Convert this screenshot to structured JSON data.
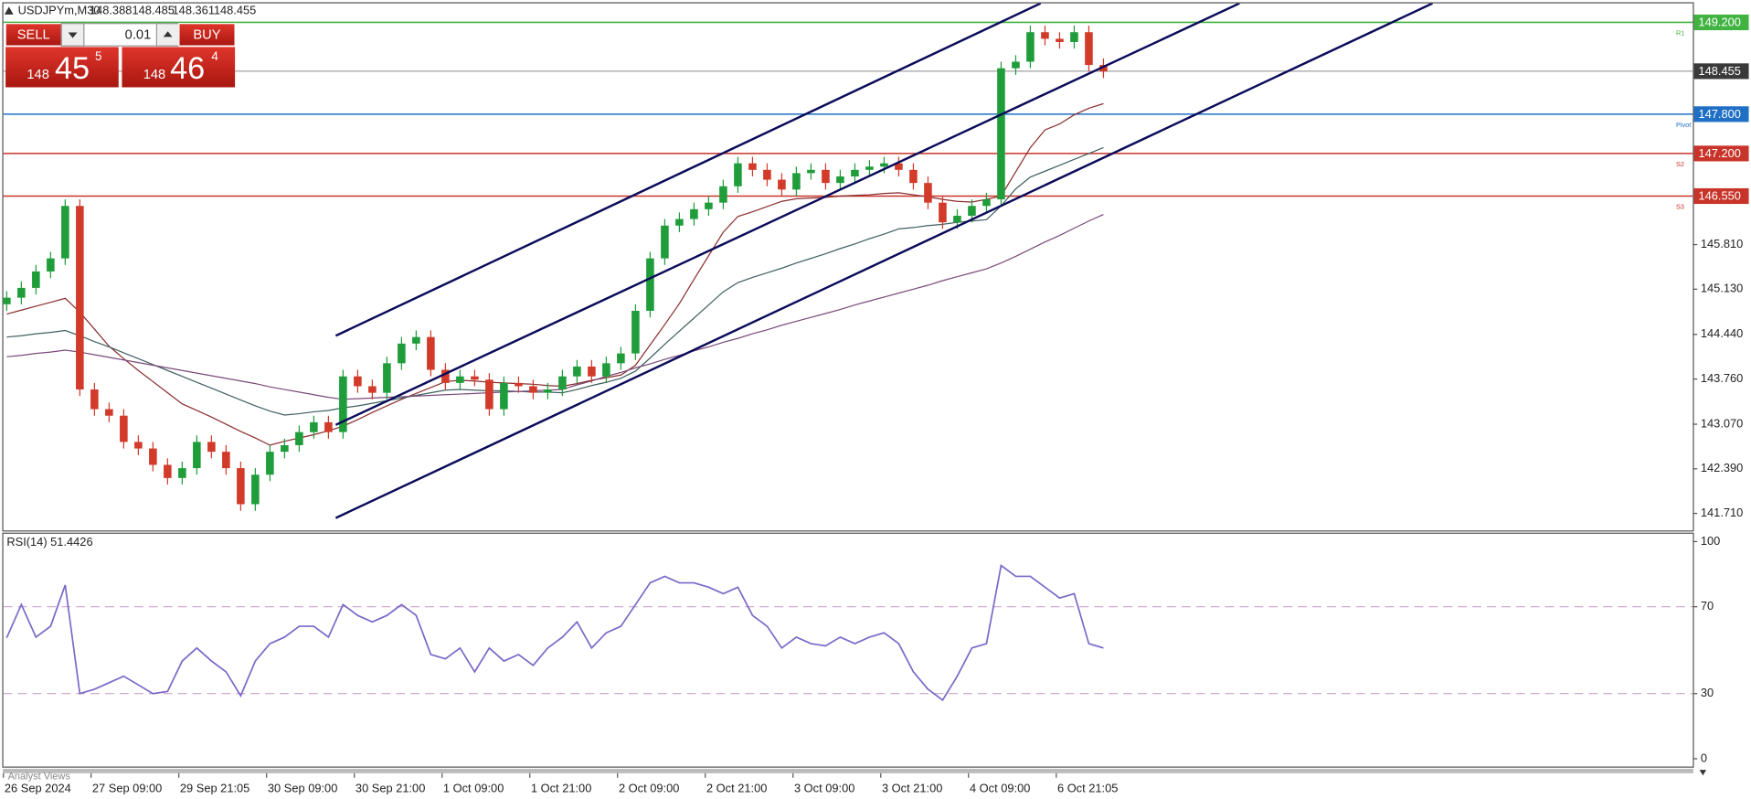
{
  "chart_data": [
    {
      "type": "candlestick",
      "title": "USDJPYm,M30",
      "header_values": [
        148.388,
        148.485,
        148.361,
        148.455
      ],
      "categories": [
        "26 Sep 2024",
        null,
        null,
        null,
        null,
        null,
        "27 Sep 09:00",
        null,
        null,
        null,
        null,
        null,
        "29 Sep 21:05",
        null,
        null,
        null,
        null,
        null,
        "30 Sep 09:00",
        null,
        null,
        null,
        null,
        null,
        "30 Sep 21:00",
        null,
        null,
        null,
        null,
        null,
        "1 Oct 09:00",
        null,
        null,
        null,
        null,
        null,
        "1 Oct 21:00",
        null,
        null,
        null,
        null,
        null,
        "2 Oct 09:00",
        null,
        null,
        null,
        null,
        null,
        "2 Oct 21:00",
        null,
        null,
        null,
        null,
        null,
        "3 Oct 09:00",
        null,
        null,
        null,
        null,
        null,
        "3 Oct 21:00",
        null,
        null,
        null,
        null,
        null,
        "4 Oct 09:00",
        null,
        null,
        null,
        null,
        null,
        "6 Oct 21:05",
        null,
        null,
        null
      ],
      "open": [
        144.9,
        145.0,
        145.15,
        145.4,
        145.6,
        146.4,
        143.6,
        143.3,
        143.2,
        142.8,
        142.7,
        142.45,
        142.25,
        142.4,
        142.8,
        142.65,
        142.4,
        141.85,
        142.3,
        142.65,
        142.75,
        142.95,
        143.1,
        142.95,
        143.8,
        143.65,
        143.55,
        144.0,
        144.3,
        144.4,
        143.9,
        143.7,
        143.8,
        143.75,
        143.3,
        143.7,
        143.65,
        143.55,
        143.6,
        143.8,
        143.95,
        143.8,
        144.0,
        144.15,
        144.8,
        145.6,
        146.1,
        146.2,
        146.35,
        146.45,
        146.7,
        147.05,
        146.95,
        146.8,
        146.65,
        146.9,
        146.95,
        146.75,
        146.85,
        146.95,
        147.0,
        147.05,
        146.95,
        146.75,
        146.45,
        146.15,
        146.25,
        146.4,
        146.5,
        148.5,
        148.6,
        149.05,
        148.95,
        148.9,
        149.05,
        148.55
      ],
      "high": [
        145.1,
        145.25,
        145.5,
        145.7,
        146.5,
        146.5,
        143.7,
        143.4,
        143.3,
        142.9,
        142.8,
        142.55,
        142.5,
        142.9,
        142.9,
        142.75,
        142.5,
        142.4,
        142.75,
        142.85,
        143.05,
        143.2,
        143.2,
        143.9,
        143.9,
        143.75,
        144.1,
        144.4,
        144.5,
        144.5,
        144.0,
        143.9,
        143.9,
        143.85,
        143.8,
        143.8,
        143.75,
        143.7,
        143.9,
        144.05,
        144.05,
        144.1,
        144.25,
        144.9,
        145.7,
        146.2,
        146.3,
        146.45,
        146.55,
        146.8,
        147.15,
        147.15,
        147.05,
        146.9,
        147.0,
        147.05,
        147.05,
        146.95,
        147.05,
        147.1,
        147.15,
        147.15,
        147.05,
        146.85,
        146.55,
        146.35,
        146.5,
        146.6,
        148.6,
        148.7,
        149.15,
        149.15,
        149.05,
        149.15,
        149.15,
        148.65
      ],
      "low": [
        144.8,
        144.9,
        145.05,
        145.3,
        145.5,
        143.5,
        143.2,
        143.1,
        142.7,
        142.6,
        142.35,
        142.15,
        142.15,
        142.3,
        142.55,
        142.3,
        141.75,
        141.75,
        142.2,
        142.55,
        142.65,
        142.85,
        142.85,
        142.85,
        143.55,
        143.45,
        143.45,
        143.9,
        144.2,
        143.8,
        143.6,
        143.6,
        143.65,
        143.2,
        143.2,
        143.55,
        143.45,
        143.45,
        143.5,
        143.7,
        143.7,
        143.7,
        143.9,
        144.05,
        144.7,
        145.5,
        146.0,
        146.1,
        146.25,
        146.35,
        146.6,
        146.85,
        146.7,
        146.55,
        146.55,
        146.8,
        146.65,
        146.65,
        146.75,
        146.85,
        146.9,
        146.85,
        146.65,
        146.35,
        146.05,
        146.05,
        146.15,
        146.3,
        146.4,
        148.4,
        148.5,
        148.85,
        148.8,
        148.8,
        148.45,
        148.35
      ],
      "close": [
        145.0,
        145.15,
        145.4,
        145.6,
        146.4,
        143.6,
        143.3,
        143.2,
        142.8,
        142.7,
        142.45,
        142.25,
        142.4,
        142.8,
        142.65,
        142.4,
        141.85,
        142.3,
        142.65,
        142.75,
        142.95,
        143.1,
        142.95,
        143.8,
        143.65,
        143.55,
        144.0,
        144.3,
        144.4,
        143.9,
        143.7,
        143.8,
        143.75,
        143.3,
        143.7,
        143.65,
        143.55,
        143.6,
        143.8,
        143.95,
        143.8,
        144.0,
        144.15,
        144.8,
        145.6,
        146.1,
        146.2,
        146.35,
        146.45,
        146.7,
        147.05,
        146.95,
        146.8,
        146.65,
        146.9,
        146.95,
        146.75,
        146.85,
        146.95,
        147.0,
        147.05,
        146.95,
        146.75,
        146.45,
        146.15,
        146.25,
        146.4,
        146.5,
        148.5,
        148.6,
        149.05,
        148.95,
        148.9,
        149.05,
        148.55,
        148.45
      ],
      "up_color": "#1f9d3a",
      "down_color": "#d23a2a",
      "series": [
        {
          "color": "#8b2d2d",
          "values": [
            144.75,
            144.81,
            144.87,
            144.93,
            144.99,
            144.78,
            144.52,
            144.26,
            144.07,
            143.89,
            143.72,
            143.55,
            143.38,
            143.28,
            143.18,
            143.07,
            142.96,
            142.86,
            142.75,
            142.81,
            142.86,
            142.91,
            142.97,
            143.04,
            143.14,
            143.25,
            143.35,
            143.45,
            143.54,
            143.63,
            143.72,
            143.74,
            143.73,
            143.71,
            143.7,
            143.69,
            143.68,
            143.66,
            143.65,
            143.69,
            143.74,
            143.78,
            143.82,
            143.97,
            144.28,
            144.59,
            144.91,
            145.28,
            145.64,
            146.0,
            146.24,
            146.31,
            146.39,
            146.47,
            146.51,
            146.52,
            146.53,
            146.55,
            146.56,
            146.57,
            146.59,
            146.6,
            146.57,
            146.54,
            146.5,
            146.47,
            146.46,
            146.5,
            146.55,
            146.92,
            147.29,
            147.56,
            147.65,
            147.79,
            147.89,
            147.96
          ]
        },
        {
          "color": "#3f5f5f",
          "values": [
            144.4,
            144.42,
            144.45,
            144.47,
            144.5,
            144.42,
            144.33,
            144.25,
            144.16,
            144.07,
            143.98,
            143.89,
            143.8,
            143.71,
            143.62,
            143.53,
            143.44,
            143.35,
            143.27,
            143.21,
            143.23,
            143.26,
            143.28,
            143.32,
            143.35,
            143.39,
            143.43,
            143.47,
            143.51,
            143.55,
            143.59,
            143.6,
            143.59,
            143.58,
            143.58,
            143.57,
            143.56,
            143.56,
            143.55,
            143.6,
            143.66,
            143.71,
            143.77,
            143.88,
            144.08,
            144.29,
            144.49,
            144.69,
            144.89,
            145.09,
            145.23,
            145.31,
            145.38,
            145.45,
            145.53,
            145.6,
            145.67,
            145.75,
            145.82,
            145.9,
            145.97,
            146.05,
            146.07,
            146.1,
            146.12,
            146.15,
            146.17,
            146.19,
            146.4,
            146.66,
            146.84,
            146.93,
            147.02,
            147.11,
            147.2,
            147.29
          ]
        },
        {
          "color": "#7a4a7a",
          "values": [
            144.1,
            144.12,
            144.15,
            144.17,
            144.2,
            144.17,
            144.13,
            144.09,
            144.05,
            144.01,
            143.97,
            143.93,
            143.89,
            143.85,
            143.81,
            143.77,
            143.73,
            143.69,
            143.64,
            143.6,
            143.56,
            143.52,
            143.48,
            143.45,
            143.46,
            143.47,
            143.48,
            143.49,
            143.5,
            143.51,
            143.52,
            143.53,
            143.54,
            143.55,
            143.56,
            143.57,
            143.58,
            143.59,
            143.6,
            143.67,
            143.73,
            143.8,
            143.86,
            143.93,
            143.99,
            144.06,
            144.12,
            144.19,
            144.25,
            144.32,
            144.38,
            144.45,
            144.51,
            144.58,
            144.64,
            144.7,
            144.76,
            144.82,
            144.89,
            144.95,
            145.01,
            145.07,
            145.13,
            145.19,
            145.26,
            145.32,
            145.38,
            145.44,
            145.53,
            145.63,
            145.74,
            145.85,
            145.95,
            146.06,
            146.17,
            146.27
          ]
        }
      ],
      "channels": [
        {
          "color": "#0b0b5a",
          "x": [
            22.5,
            70.7
          ],
          "y": [
            144.42,
            149.49
          ]
        },
        {
          "color": "#0b0b5a",
          "x": [
            22.5,
            84.3
          ],
          "y": [
            143.06,
            149.49
          ]
        },
        {
          "color": "#0b0b5a",
          "x": [
            22.5,
            97.5
          ],
          "y": [
            141.64,
            149.49
          ]
        }
      ],
      "levels": [
        {
          "value": 149.2,
          "label": "149.200",
          "name": "R1",
          "color": "#41b341"
        },
        {
          "value": 147.8,
          "label": "147.800",
          "name": "Pivot",
          "color": "#1f6fc4"
        },
        {
          "value": 147.2,
          "label": "147.200",
          "name": "S2",
          "color": "#c8342a"
        },
        {
          "value": 146.55,
          "label": "146.550",
          "name": "S3",
          "color": "#c8342a"
        }
      ],
      "last_price": 148.455,
      "last_color": "#3a3a3a",
      "ylim": [
        141.45,
        149.49
      ],
      "yticks": [
        {
          "value": 141.71,
          "label": "141.710"
        },
        {
          "value": 142.39,
          "label": "142.390"
        },
        {
          "value": 143.07,
          "label": "143.070"
        },
        {
          "value": 143.76,
          "label": "143.760"
        },
        {
          "value": 144.44,
          "label": "144.440"
        },
        {
          "value": 145.13,
          "label": "145.130"
        },
        {
          "value": 145.81,
          "label": "145.810"
        }
      ]
    },
    {
      "type": "line",
      "title": "RSI(14) 51.4426",
      "color": "#7b68c8",
      "values": [
        55.7,
        71,
        56,
        61,
        80,
        30,
        32,
        35,
        38,
        34,
        30,
        31,
        45,
        51,
        45,
        40,
        29,
        45,
        53,
        56,
        61,
        61,
        56,
        71,
        66,
        63,
        66,
        71,
        66,
        48,
        46,
        51,
        40,
        51,
        45,
        48,
        43,
        51,
        56,
        63,
        51,
        58,
        61,
        71,
        81,
        84,
        81,
        81,
        79,
        76,
        79,
        66,
        61,
        51,
        56,
        53,
        52,
        56,
        53,
        56,
        58,
        53,
        40,
        32,
        27,
        38,
        51,
        53,
        89,
        84,
        84,
        79,
        74,
        76,
        53,
        51
      ],
      "ylim": [
        -3.6,
        103.6
      ],
      "yticks": [
        0,
        30,
        70,
        100
      ],
      "levels": [
        30,
        70
      ],
      "level_color": "#c9a3c9"
    }
  ],
  "trade_panel": {
    "sell": "SELL",
    "buy": "BUY",
    "lot": "0.01",
    "sell_price": {
      "prefix": "148",
      "big": "45",
      "sup": "5"
    },
    "buy_price": {
      "prefix": "148",
      "big": "46",
      "sup": "4"
    }
  },
  "analyst_tab": "Analyst Views"
}
